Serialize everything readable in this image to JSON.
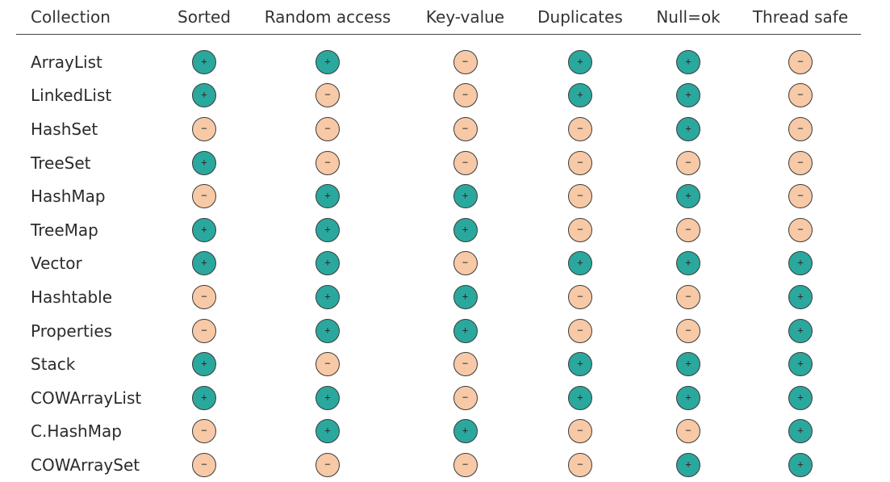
{
  "columns": [
    "Collection",
    "Sorted",
    "Random access",
    "Key-value",
    "Duplicates",
    "Null=ok",
    "Thread safe"
  ],
  "legend_symbols": {
    "yes": "+",
    "no": "−"
  },
  "colors": {
    "yes": "#2aa89e",
    "no": "#f8c9a6",
    "border": "#3a3a3a",
    "header_rule": "#444444"
  },
  "rows": [
    {
      "name": "ArrayList",
      "values": [
        true,
        true,
        false,
        true,
        true,
        false
      ]
    },
    {
      "name": "LinkedList",
      "values": [
        true,
        false,
        false,
        true,
        true,
        false
      ]
    },
    {
      "name": "HashSet",
      "values": [
        false,
        false,
        false,
        false,
        true,
        false
      ]
    },
    {
      "name": "TreeSet",
      "values": [
        true,
        false,
        false,
        false,
        false,
        false
      ]
    },
    {
      "name": "HashMap",
      "values": [
        false,
        true,
        true,
        false,
        true,
        false
      ]
    },
    {
      "name": "TreeMap",
      "values": [
        true,
        true,
        true,
        false,
        false,
        false
      ]
    },
    {
      "name": "Vector",
      "values": [
        true,
        true,
        false,
        true,
        true,
        true
      ]
    },
    {
      "name": "Hashtable",
      "values": [
        false,
        true,
        true,
        false,
        false,
        true
      ]
    },
    {
      "name": "Properties",
      "values": [
        false,
        true,
        true,
        false,
        false,
        true
      ]
    },
    {
      "name": "Stack",
      "values": [
        true,
        false,
        false,
        true,
        true,
        true
      ]
    },
    {
      "name": "COWArrayList",
      "values": [
        true,
        true,
        false,
        true,
        true,
        true
      ]
    },
    {
      "name": "C.HashMap",
      "values": [
        false,
        true,
        true,
        false,
        false,
        true
      ]
    },
    {
      "name": "COWArraySet",
      "values": [
        false,
        false,
        false,
        false,
        true,
        true
      ]
    }
  ]
}
